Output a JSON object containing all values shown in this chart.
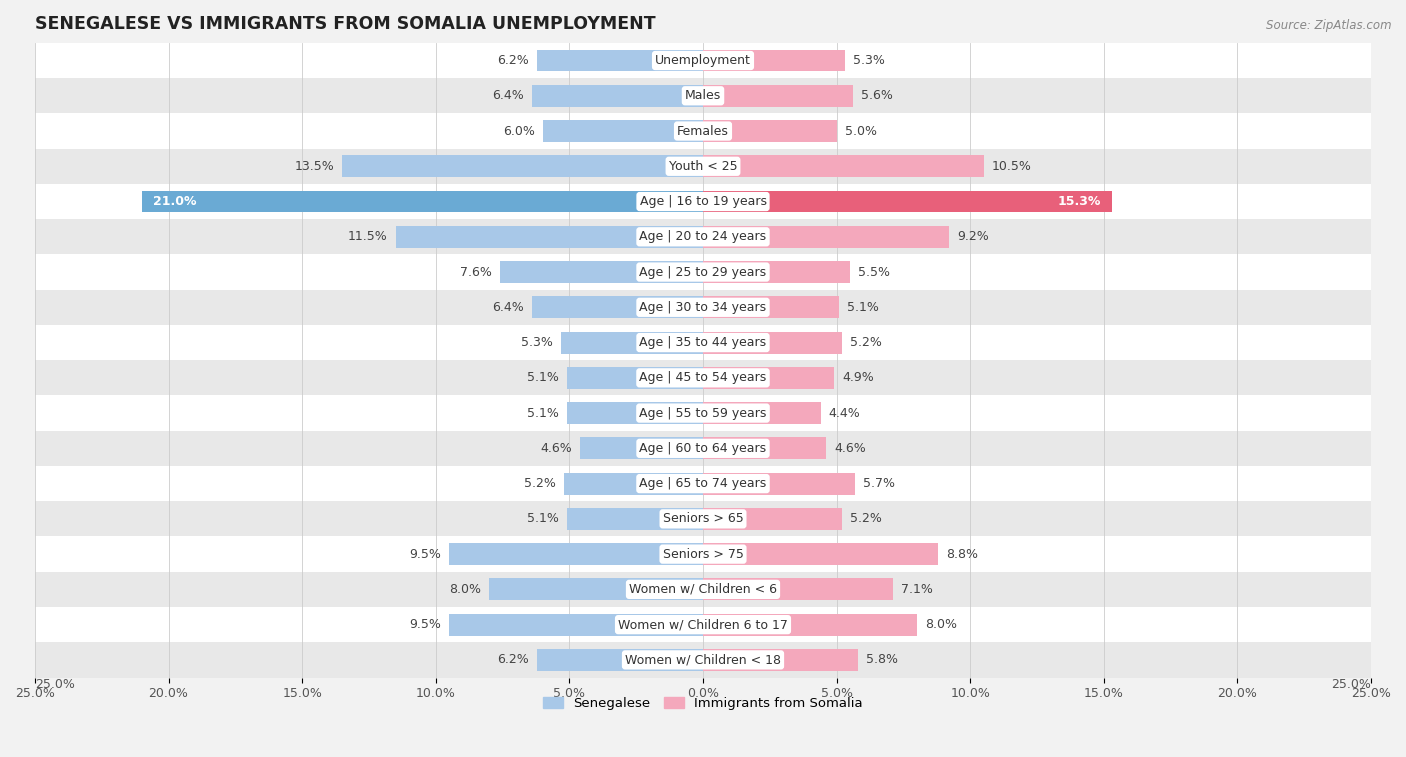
{
  "title": "SENEGALESE VS IMMIGRANTS FROM SOMALIA UNEMPLOYMENT",
  "source": "Source: ZipAtlas.com",
  "categories": [
    "Unemployment",
    "Males",
    "Females",
    "Youth < 25",
    "Age | 16 to 19 years",
    "Age | 20 to 24 years",
    "Age | 25 to 29 years",
    "Age | 30 to 34 years",
    "Age | 35 to 44 years",
    "Age | 45 to 54 years",
    "Age | 55 to 59 years",
    "Age | 60 to 64 years",
    "Age | 65 to 74 years",
    "Seniors > 65",
    "Seniors > 75",
    "Women w/ Children < 6",
    "Women w/ Children 6 to 17",
    "Women w/ Children < 18"
  ],
  "senegalese": [
    6.2,
    6.4,
    6.0,
    13.5,
    21.0,
    11.5,
    7.6,
    6.4,
    5.3,
    5.1,
    5.1,
    4.6,
    5.2,
    5.1,
    9.5,
    8.0,
    9.5,
    6.2
  ],
  "somalia": [
    5.3,
    5.6,
    5.0,
    10.5,
    15.3,
    9.2,
    5.5,
    5.1,
    5.2,
    4.9,
    4.4,
    4.6,
    5.7,
    5.2,
    8.8,
    7.1,
    8.0,
    5.8
  ],
  "senegalese_color": "#a8c8e8",
  "somalia_color": "#f4a8bc",
  "highlight_senegalese_color": "#6aaad4",
  "highlight_somalia_color": "#e8607a",
  "bg_color": "#f2f2f2",
  "row_color_odd": "#ffffff",
  "row_color_even": "#e8e8e8",
  "axis_limit": 25.0,
  "bar_height": 0.62,
  "legend_senegalese": "Senegalese",
  "legend_somalia": "Immigrants from Somalia",
  "label_fontsize": 9.0,
  "category_fontsize": 9.0,
  "title_fontsize": 12.5
}
